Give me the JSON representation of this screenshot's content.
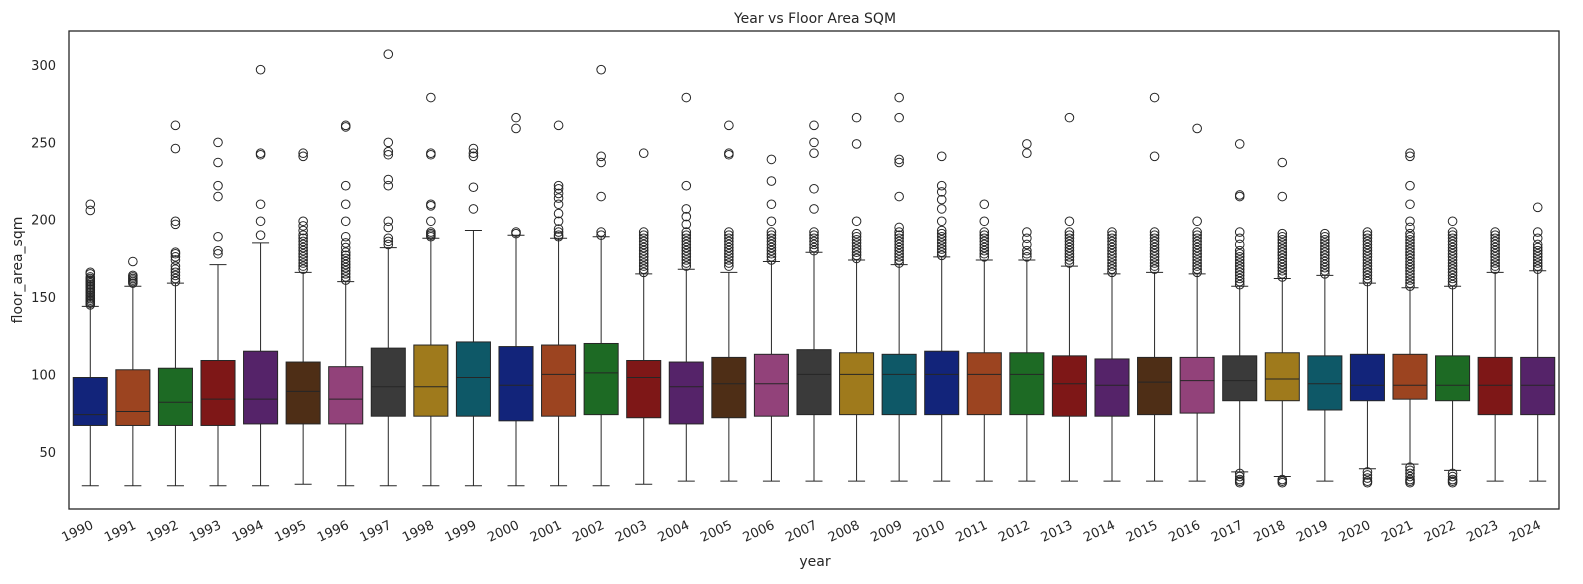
{
  "chart_data": {
    "type": "boxplot",
    "title": "Year vs Floor Area SQM",
    "xlabel": "year",
    "ylabel": "floor_area_sqm",
    "ylim": [
      13,
      322
    ],
    "yticks": [
      50,
      100,
      150,
      200,
      250,
      300
    ],
    "grid": false,
    "palette": [
      "#12247a",
      "#9c4420",
      "#1d6a24",
      "#7e1717",
      "#552369",
      "#4e2e16",
      "#92427a",
      "#3a3a3a",
      "#9f7a1c",
      "#0e5867"
    ],
    "categories": [
      "1990",
      "1991",
      "1992",
      "1993",
      "1994",
      "1995",
      "1996",
      "1997",
      "1998",
      "1999",
      "2000",
      "2001",
      "2002",
      "2003",
      "2004",
      "2005",
      "2006",
      "2007",
      "2008",
      "2009",
      "2010",
      "2011",
      "2012",
      "2013",
      "2014",
      "2015",
      "2016",
      "2017",
      "2018",
      "2019",
      "2020",
      "2021",
      "2022",
      "2023",
      "2024"
    ],
    "boxes": [
      {
        "q1": 67,
        "median": 74,
        "q3": 98,
        "whisker_low": 28,
        "whisker_high": 144,
        "outliers": [
          145,
          146,
          147,
          148,
          149,
          150,
          151,
          152,
          153,
          154,
          155,
          156,
          157,
          158,
          159,
          160,
          161,
          162,
          163,
          165,
          166,
          206,
          210
        ]
      },
      {
        "q1": 67,
        "median": 76,
        "q3": 103,
        "whisker_low": 28,
        "whisker_high": 157,
        "outliers": [
          159,
          160,
          161,
          162,
          163,
          164,
          173
        ]
      },
      {
        "q1": 67,
        "median": 82,
        "q3": 104,
        "whisker_low": 28,
        "whisker_high": 159,
        "outliers": [
          160,
          162,
          164,
          166,
          168,
          170,
          174,
          176,
          178,
          179,
          197,
          199,
          246,
          261
        ]
      },
      {
        "q1": 67,
        "median": 84,
        "q3": 109,
        "whisker_low": 28,
        "whisker_high": 171,
        "outliers": [
          178,
          180,
          189,
          215,
          222,
          237,
          250
        ]
      },
      {
        "q1": 68,
        "median": 84,
        "q3": 115,
        "whisker_low": 28,
        "whisker_high": 185,
        "outliers": [
          190,
          199,
          210,
          242,
          243,
          297
        ]
      },
      {
        "q1": 68,
        "median": 89,
        "q3": 108,
        "whisker_low": 29,
        "whisker_high": 166,
        "outliers": [
          168,
          170,
          172,
          174,
          176,
          178,
          180,
          182,
          184,
          186,
          188,
          190,
          193,
          196,
          199,
          241,
          243
        ]
      },
      {
        "q1": 68,
        "median": 84,
        "q3": 105,
        "whisker_low": 28,
        "whisker_high": 160,
        "outliers": [
          161,
          163,
          165,
          167,
          169,
          171,
          173,
          175,
          177,
          179,
          182,
          185,
          189,
          199,
          210,
          222,
          260,
          261
        ]
      },
      {
        "q1": 73,
        "median": 92,
        "q3": 117,
        "whisker_low": 28,
        "whisker_high": 182,
        "outliers": [
          184,
          186,
          188,
          195,
          199,
          222,
          226,
          242,
          244,
          250,
          307
        ]
      },
      {
        "q1": 73,
        "median": 92,
        "q3": 119,
        "whisker_low": 28,
        "whisker_high": 188,
        "outliers": [
          189,
          190,
          191,
          192,
          199,
          209,
          210,
          242,
          243,
          279
        ]
      },
      {
        "q1": 73,
        "median": 98,
        "q3": 121,
        "whisker_low": 28,
        "whisker_high": 193,
        "outliers": [
          207,
          221,
          241,
          243,
          246
        ]
      },
      {
        "q1": 70,
        "median": 93,
        "q3": 118,
        "whisker_low": 28,
        "whisker_high": 190,
        "outliers": [
          191,
          192,
          259,
          266
        ]
      },
      {
        "q1": 73,
        "median": 100,
        "q3": 119,
        "whisker_low": 28,
        "whisker_high": 188,
        "outliers": [
          189,
          190,
          192,
          194,
          199,
          204,
          210,
          214,
          217,
          220,
          222,
          261
        ]
      },
      {
        "q1": 74,
        "median": 101,
        "q3": 120,
        "whisker_low": 28,
        "whisker_high": 189,
        "outliers": [
          190,
          192,
          215,
          237,
          241,
          297
        ]
      },
      {
        "q1": 72,
        "median": 98,
        "q3": 109,
        "whisker_low": 29,
        "whisker_high": 165,
        "outliers": [
          166,
          168,
          170,
          172,
          174,
          176,
          178,
          180,
          182,
          184,
          186,
          188,
          190,
          192,
          243
        ]
      },
      {
        "q1": 68,
        "median": 92,
        "q3": 108,
        "whisker_low": 31,
        "whisker_high": 168,
        "outliers": [
          170,
          172,
          174,
          176,
          178,
          180,
          182,
          184,
          186,
          188,
          190,
          192,
          197,
          202,
          207,
          222,
          279
        ]
      },
      {
        "q1": 72,
        "median": 94,
        "q3": 111,
        "whisker_low": 31,
        "whisker_high": 166,
        "outliers": [
          170,
          172,
          174,
          176,
          178,
          180,
          182,
          184,
          186,
          188,
          190,
          192,
          242,
          243,
          261
        ]
      },
      {
        "q1": 73,
        "median": 94,
        "q3": 113,
        "whisker_low": 31,
        "whisker_high": 173,
        "outliers": [
          174,
          176,
          178,
          180,
          182,
          184,
          186,
          188,
          190,
          192,
          199,
          210,
          225,
          239
        ]
      },
      {
        "q1": 74,
        "median": 100,
        "q3": 116,
        "whisker_low": 31,
        "whisker_high": 179,
        "outliers": [
          180,
          182,
          184,
          186,
          188,
          190,
          192,
          207,
          220,
          243,
          250,
          261
        ]
      },
      {
        "q1": 74,
        "median": 100,
        "q3": 114,
        "whisker_low": 31,
        "whisker_high": 174,
        "outliers": [
          175,
          177,
          179,
          181,
          183,
          185,
          187,
          189,
          191,
          199,
          249,
          266
        ]
      },
      {
        "q1": 74,
        "median": 100,
        "q3": 113,
        "whisker_low": 31,
        "whisker_high": 171,
        "outliers": [
          172,
          174,
          176,
          178,
          180,
          182,
          184,
          186,
          188,
          190,
          192,
          195,
          215,
          237,
          239,
          266,
          279
        ]
      },
      {
        "q1": 74,
        "median": 100,
        "q3": 115,
        "whisker_low": 31,
        "whisker_high": 176,
        "outliers": [
          177,
          179,
          181,
          183,
          185,
          187,
          189,
          191,
          193,
          199,
          207,
          213,
          218,
          222,
          241
        ]
      },
      {
        "q1": 74,
        "median": 100,
        "q3": 114,
        "whisker_low": 31,
        "whisker_high": 174,
        "outliers": [
          176,
          178,
          180,
          182,
          184,
          186,
          188,
          190,
          192,
          199,
          210
        ]
      },
      {
        "q1": 74,
        "median": 100,
        "q3": 114,
        "whisker_low": 31,
        "whisker_high": 174,
        "outliers": [
          176,
          178,
          180,
          184,
          188,
          192,
          243,
          249
        ]
      },
      {
        "q1": 73,
        "median": 94,
        "q3": 112,
        "whisker_low": 31,
        "whisker_high": 170,
        "outliers": [
          172,
          174,
          176,
          178,
          180,
          182,
          184,
          186,
          188,
          190,
          192,
          199,
          266
        ]
      },
      {
        "q1": 73,
        "median": 93,
        "q3": 110,
        "whisker_low": 31,
        "whisker_high": 165,
        "outliers": [
          166,
          168,
          170,
          172,
          174,
          176,
          178,
          180,
          182,
          184,
          186,
          188,
          190,
          192
        ]
      },
      {
        "q1": 74,
        "median": 95,
        "q3": 111,
        "whisker_low": 31,
        "whisker_high": 166,
        "outliers": [
          168,
          170,
          172,
          174,
          176,
          178,
          180,
          182,
          184,
          186,
          188,
          190,
          192,
          241,
          279
        ]
      },
      {
        "q1": 75,
        "median": 96,
        "q3": 111,
        "whisker_low": 31,
        "whisker_high": 165,
        "outliers": [
          166,
          168,
          170,
          172,
          174,
          176,
          178,
          180,
          182,
          184,
          186,
          188,
          190,
          192,
          199,
          259
        ]
      },
      {
        "q1": 83,
        "median": 96,
        "q3": 112,
        "whisker_low": 37,
        "whisker_high": 157,
        "outliers": [
          30,
          31,
          32,
          34,
          36,
          158,
          160,
          162,
          164,
          166,
          168,
          170,
          172,
          174,
          176,
          178,
          180,
          184,
          188,
          192,
          215,
          216,
          249
        ]
      },
      {
        "q1": 83,
        "median": 97,
        "q3": 114,
        "whisker_low": 34,
        "whisker_high": 162,
        "outliers": [
          30,
          31,
          32,
          163,
          165,
          167,
          169,
          171,
          173,
          175,
          177,
          179,
          181,
          183,
          185,
          187,
          189,
          191,
          215,
          237
        ]
      },
      {
        "q1": 77,
        "median": 94,
        "q3": 112,
        "whisker_low": 31,
        "whisker_high": 164,
        "outliers": [
          165,
          167,
          169,
          171,
          173,
          175,
          177,
          179,
          181,
          183,
          185,
          187,
          189,
          191
        ]
      },
      {
        "q1": 83,
        "median": 93,
        "q3": 113,
        "whisker_low": 39,
        "whisker_high": 159,
        "outliers": [
          30,
          31,
          33,
          35,
          37,
          160,
          162,
          164,
          166,
          168,
          170,
          172,
          174,
          176,
          178,
          180,
          182,
          184,
          186,
          188,
          190,
          192
        ]
      },
      {
        "q1": 84,
        "median": 93,
        "q3": 113,
        "whisker_low": 42,
        "whisker_high": 156,
        "outliers": [
          30,
          31,
          32,
          34,
          36,
          38,
          40,
          157,
          159,
          161,
          163,
          165,
          167,
          169,
          171,
          173,
          175,
          177,
          179,
          181,
          183,
          185,
          187,
          189,
          191,
          195,
          199,
          210,
          222,
          241,
          243
        ]
      },
      {
        "q1": 83,
        "median": 93,
        "q3": 112,
        "whisker_low": 38,
        "whisker_high": 157,
        "outliers": [
          30,
          31,
          32,
          34,
          36,
          158,
          160,
          162,
          164,
          166,
          168,
          170,
          172,
          174,
          176,
          178,
          180,
          182,
          184,
          186,
          188,
          190,
          192,
          199
        ]
      },
      {
        "q1": 74,
        "median": 93,
        "q3": 111,
        "whisker_low": 31,
        "whisker_high": 166,
        "outliers": [
          168,
          170,
          172,
          174,
          176,
          178,
          180,
          182,
          184,
          186,
          188,
          190,
          192
        ]
      },
      {
        "q1": 74,
        "median": 93,
        "q3": 111,
        "whisker_low": 31,
        "whisker_high": 167,
        "outliers": [
          168,
          170,
          172,
          174,
          176,
          178,
          180,
          182,
          184,
          188,
          192,
          208
        ]
      }
    ]
  }
}
